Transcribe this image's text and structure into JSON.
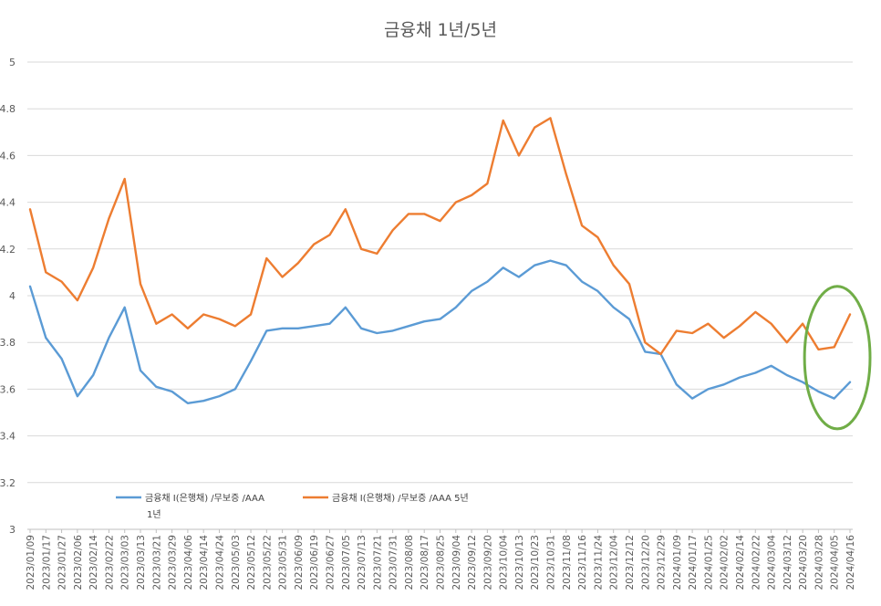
{
  "chart_data": {
    "type": "line",
    "title": "금융채 1년/5년",
    "xlabel": "",
    "ylabel": "",
    "ylim": [
      3,
      5
    ],
    "yticks": [
      "3",
      "3.2",
      "3.4",
      "3.6",
      "3.8",
      "4",
      "4.2",
      "4.4",
      "4.6",
      "4.8",
      "5"
    ],
    "categories": [
      "2023/01/09",
      "2023/01/17",
      "2023/01/27",
      "2023/02/06",
      "2023/02/14",
      "2023/02/22",
      "2023/03/03",
      "2023/03/13",
      "2023/03/21",
      "2023/03/29",
      "2023/04/06",
      "2023/04/14",
      "2023/04/24",
      "2023/05/03",
      "2023/05/12",
      "2023/05/22",
      "2023/05/31",
      "2023/06/09",
      "2023/06/19",
      "2023/06/27",
      "2023/07/05",
      "2023/07/13",
      "2023/07/21",
      "2023/07/31",
      "2023/08/08",
      "2023/08/17",
      "2023/08/25",
      "2023/09/04",
      "2023/09/12",
      "2023/09/20",
      "2023/10/04",
      "2023/10/13",
      "2023/10/23",
      "2023/10/31",
      "2023/11/08",
      "2023/11/16",
      "2023/11/24",
      "2023/12/04",
      "2023/12/12",
      "2023/12/20",
      "2023/12/29",
      "2024/01/09",
      "2024/01/17",
      "2024/01/25",
      "2024/02/02",
      "2024/02/14",
      "2024/02/22",
      "2024/03/04",
      "2024/03/12",
      "2024/03/20",
      "2024/03/28",
      "2024/04/05",
      "2024/04/16"
    ],
    "series": [
      {
        "name": "금융채 I(은행채) /무보증 /AAA 1년",
        "color": "#5b9bd5",
        "values": [
          4.04,
          3.82,
          3.73,
          3.57,
          3.66,
          3.82,
          3.95,
          3.68,
          3.61,
          3.59,
          3.54,
          3.55,
          3.57,
          3.6,
          3.72,
          3.85,
          3.86,
          3.86,
          3.87,
          3.88,
          3.95,
          3.86,
          3.84,
          3.85,
          3.87,
          3.89,
          3.9,
          3.95,
          4.02,
          4.06,
          4.12,
          4.08,
          4.13,
          4.15,
          4.13,
          4.06,
          4.02,
          3.95,
          3.9,
          3.76,
          3.75,
          3.62,
          3.56,
          3.6,
          3.62,
          3.65,
          3.67,
          3.7,
          3.66,
          3.63,
          3.59,
          3.56,
          3.63
        ]
      },
      {
        "name": "금융채 I(은행채) /무보증 /AAA 5년",
        "color": "#ed7d31",
        "values": [
          4.37,
          4.1,
          4.06,
          3.98,
          4.12,
          4.33,
          4.5,
          4.05,
          3.88,
          3.92,
          3.86,
          3.92,
          3.9,
          3.87,
          3.92,
          4.16,
          4.08,
          4.14,
          4.22,
          4.26,
          4.37,
          4.2,
          4.18,
          4.28,
          4.35,
          4.35,
          4.32,
          4.4,
          4.43,
          4.48,
          4.75,
          4.6,
          4.72,
          4.76,
          4.52,
          4.3,
          4.25,
          4.13,
          4.05,
          3.8,
          3.75,
          3.85,
          3.84,
          3.88,
          3.82,
          3.87,
          3.93,
          3.88,
          3.8,
          3.88,
          3.77,
          3.78,
          3.92
        ]
      }
    ],
    "legend": {
      "position": "bottom-left",
      "line1": "금융채 I(은행채) /무보증 /AAA",
      "line1_suffix": "1년",
      "line2": "금융채 I(은행채) /무보증 /AAA 5년"
    },
    "annotation": {
      "type": "ellipse",
      "color": "#70ad47",
      "x_from": "2024/03/20",
      "x_to": "2024/04/16",
      "y_from": 3.43,
      "y_to": 4.04
    },
    "grid": true
  }
}
